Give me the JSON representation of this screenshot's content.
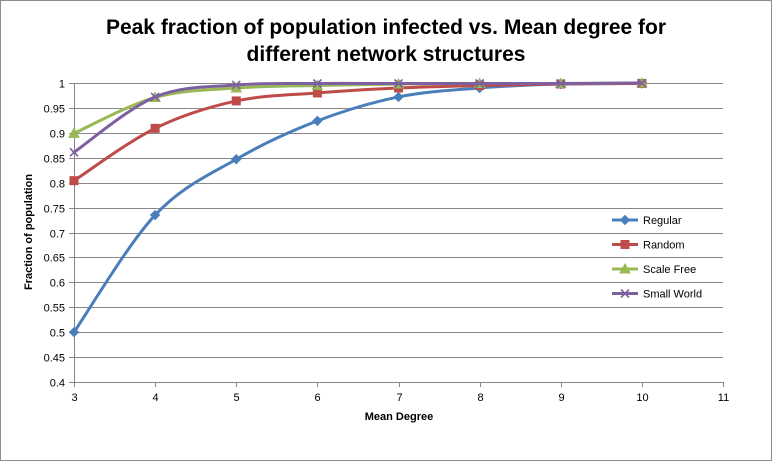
{
  "chart_data": {
    "type": "line",
    "title_lines": [
      "Peak fraction of population infected vs. Mean degree for",
      "different network structures"
    ],
    "xlabel": "Mean Degree",
    "ylabel": "Fraction of population",
    "xlim": [
      3,
      11
    ],
    "ylim": [
      0.4,
      1
    ],
    "x_ticks": [
      "3",
      "4",
      "5",
      "6",
      "7",
      "8",
      "9",
      "10",
      "11"
    ],
    "y_ticks": [
      "0.4",
      "0.45",
      "0.5",
      "0.55",
      "0.6",
      "0.65",
      "0.7",
      "0.75",
      "0.8",
      "0.85",
      "0.9",
      "0.95",
      "1"
    ],
    "grid": "horizontal",
    "smooth": true,
    "legend_position": "right",
    "x": [
      3,
      4,
      5,
      6,
      7,
      8,
      9,
      10
    ],
    "series": [
      {
        "name": "Regular",
        "color": "#4a7ebb",
        "marker": "diamond",
        "values": [
          0.5,
          0.735,
          0.847,
          0.924,
          0.972,
          0.99,
          0.998,
          0.999
        ]
      },
      {
        "name": "Random",
        "color": "#be4b48",
        "marker": "square",
        "values": [
          0.804,
          0.909,
          0.964,
          0.98,
          0.99,
          0.995,
          0.998,
          0.999
        ]
      },
      {
        "name": "Scale Free",
        "color": "#98b954",
        "marker": "triangle",
        "values": [
          0.899,
          0.971,
          0.99,
          0.995,
          0.998,
          0.999,
          0.999,
          1.0
        ]
      },
      {
        "name": "Small World",
        "color": "#7d60a0",
        "marker": "x",
        "values": [
          0.861,
          0.972,
          0.996,
          0.999,
          0.999,
          0.999,
          0.999,
          1.0
        ]
      }
    ]
  }
}
